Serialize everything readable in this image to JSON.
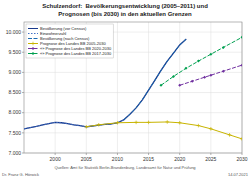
{
  "chart_data": {
    "type": "line",
    "title": "Schulzendorf:  Bevölkerungsentwicklung (2005–2011) und",
    "subtitle": "Prognosen (bis 2030) in den aktuellen Grenzen",
    "xlim": [
      1995,
      2030
    ],
    "xticks": [
      2000,
      2005,
      2010,
      2015,
      2020,
      2025,
      2030
    ],
    "ylim": [
      7000,
      10250
    ],
    "yticks": [
      {
        "value": 7000,
        "label": "7.000"
      },
      {
        "value": 7500,
        "label": "7.500"
      },
      {
        "value": 8000,
        "label": "8.000"
      },
      {
        "value": 8500,
        "label": "8.500"
      },
      {
        "value": 9000,
        "label": "9.000"
      },
      {
        "value": 9500,
        "label": "9.500"
      },
      {
        "value": 10000,
        "label": "10.000"
      }
    ],
    "grid": true,
    "legend": "upper left",
    "series": [
      {
        "name": "Bevölkerung (vor Census)",
        "color": "#1a3a8c",
        "line_style": "solid",
        "marker": "none",
        "x": [
          1995,
          1996,
          1997,
          1998,
          1999,
          2000,
          2001,
          2002,
          2003,
          2004,
          2005,
          2006,
          2007,
          2008,
          2009,
          2010,
          2011,
          2012,
          2013,
          2014,
          2015,
          2016,
          2017,
          2018,
          2019,
          2020,
          2021
        ],
        "values": [
          7600,
          7630,
          7660,
          7700,
          7730,
          7760,
          7750,
          7730,
          7700,
          7680,
          7650,
          7670,
          7690,
          7710,
          7720,
          7750,
          7820,
          7960,
          8120,
          8320,
          8560,
          8800,
          9050,
          9280,
          9480,
          9680,
          9820
        ]
      },
      {
        "name": "Einwohnerzahl",
        "color": "#4472c4",
        "line_style": "dotted",
        "marker": "none",
        "x": [
          1995,
          1996,
          1997,
          1998,
          1999,
          2000,
          2001,
          2002,
          2003,
          2004,
          2005,
          2006,
          2007,
          2008,
          2009,
          2010,
          2011
        ],
        "values": [
          7600,
          7630,
          7660,
          7700,
          7730,
          7760,
          7750,
          7730,
          7700,
          7680,
          7650,
          7670,
          7690,
          7710,
          7720,
          7750,
          7820
        ]
      },
      {
        "name": "Bevölkerung (nach Census)",
        "color": "#1a6ab0",
        "line_style": "dashed",
        "marker": "none",
        "x": [
          2011,
          2012,
          2013,
          2014,
          2015,
          2016,
          2017,
          2018,
          2019,
          2020,
          2021
        ],
        "values": [
          7820,
          7960,
          8120,
          8320,
          8560,
          8800,
          9050,
          9280,
          9480,
          9680,
          9820
        ]
      },
      {
        "name": "Prognose des Landes BB 2005-2030",
        "color": "#c8b400",
        "line_style": "solid",
        "marker": "plus",
        "x": [
          2005,
          2007,
          2010,
          2013,
          2015,
          2018,
          2020,
          2023,
          2025,
          2028,
          2030
        ],
        "values": [
          7650,
          7700,
          7750,
          7760,
          7760,
          7770,
          7750,
          7680,
          7600,
          7450,
          7350
        ]
      },
      {
        "name": "«» Prognose des Landes BB 2020-2030",
        "color": "#7030a0",
        "line_style": "dashed",
        "marker": "diamond",
        "x": [
          2020,
          2022,
          2024,
          2025,
          2027,
          2030
        ],
        "values": [
          8680,
          8780,
          8880,
          8930,
          9030,
          9180
        ]
      },
      {
        "name": "«» Prognose des Landes BB 2017-2030",
        "color": "#00a050",
        "line_style": "dashed",
        "marker": "diamond",
        "x": [
          2017,
          2019,
          2021,
          2023,
          2025,
          2027,
          2030
        ],
        "values": [
          8680,
          8900,
          9100,
          9280,
          9450,
          9620,
          9870
        ]
      }
    ],
    "annotations": [
      "Dr. Franz G. Hörwick",
      "Quellen: Amt für Statistik Berlin-Brandenburg, Landesamt für Natur und Prüfung",
      "14.07.2021"
    ]
  }
}
